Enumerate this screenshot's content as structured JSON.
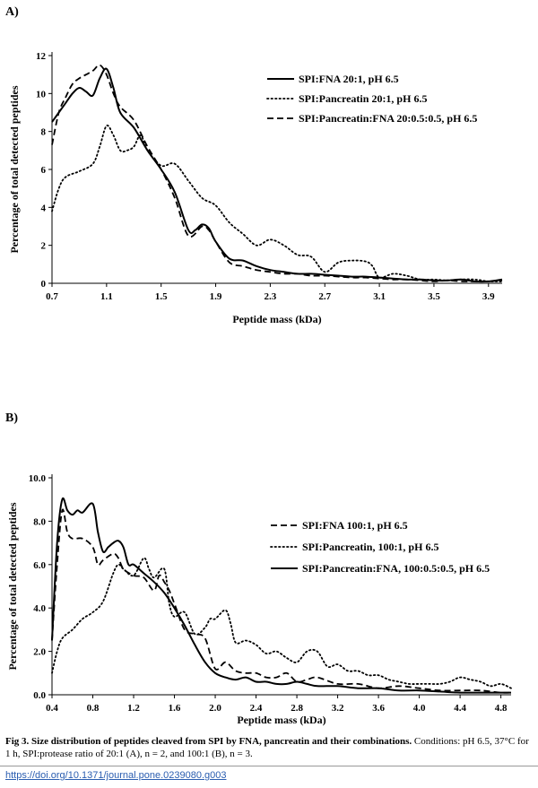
{
  "panels": {
    "a_label": "A)",
    "b_label": "B)"
  },
  "chart_data": [
    {
      "type": "line",
      "title": "",
      "xlabel": "Peptide mass (kDa)",
      "ylabel": "Percentage of total detected peptides",
      "xlim": [
        0.7,
        4.0
      ],
      "ylim": [
        0,
        12
      ],
      "xticks": [
        0.7,
        1.1,
        1.5,
        1.9,
        2.3,
        2.7,
        3.1,
        3.5,
        3.9
      ],
      "xtick_labels": [
        "0.7",
        "1.1",
        "1.5",
        "1.9",
        "2.3",
        "2.7",
        "3.1",
        "3.5",
        "3.9"
      ],
      "yticks": [
        0,
        2,
        4,
        6,
        8,
        10,
        12
      ],
      "ytick_labels": [
        "0",
        "2",
        "4",
        "6",
        "8",
        "10",
        "12"
      ],
      "legend_position": "top-right",
      "series": [
        {
          "name": "SPI:FNA 20:1, pH 6.5",
          "style": "solid",
          "x": [
            0.7,
            0.75,
            0.8,
            0.85,
            0.9,
            0.95,
            1.0,
            1.05,
            1.1,
            1.15,
            1.2,
            1.3,
            1.4,
            1.5,
            1.6,
            1.7,
            1.75,
            1.8,
            1.85,
            1.9,
            2.0,
            2.1,
            2.2,
            2.3,
            2.4,
            2.5,
            2.6,
            2.7,
            2.8,
            2.9,
            3.0,
            3.1,
            3.2,
            3.3,
            3.4,
            3.5,
            3.6,
            3.7,
            3.8,
            3.9,
            4.0
          ],
          "y": [
            8.5,
            9.0,
            9.5,
            10.0,
            10.3,
            10.1,
            9.9,
            10.8,
            11.3,
            10.3,
            9.0,
            8.2,
            7.0,
            6.0,
            4.8,
            2.8,
            2.8,
            3.1,
            2.9,
            2.2,
            1.3,
            1.2,
            0.9,
            0.7,
            0.6,
            0.5,
            0.5,
            0.45,
            0.4,
            0.35,
            0.35,
            0.3,
            0.25,
            0.2,
            0.2,
            0.15,
            0.15,
            0.2,
            0.1,
            0.1,
            0.2
          ]
        },
        {
          "name": "SPI:Pancreatin 20:1, pH 6.5",
          "style": "dotted",
          "x": [
            0.7,
            0.75,
            0.8,
            0.9,
            1.0,
            1.05,
            1.1,
            1.15,
            1.2,
            1.25,
            1.3,
            1.35,
            1.4,
            1.5,
            1.6,
            1.7,
            1.8,
            1.9,
            2.0,
            2.1,
            2.2,
            2.3,
            2.4,
            2.5,
            2.6,
            2.7,
            2.8,
            2.9,
            3.0,
            3.05,
            3.1,
            3.2,
            3.3,
            3.4,
            3.5,
            3.6,
            3.7,
            3.8,
            3.9,
            4.0
          ],
          "y": [
            3.8,
            5.0,
            5.6,
            5.9,
            6.3,
            7.2,
            8.3,
            7.8,
            7.0,
            7.0,
            7.2,
            7.8,
            7.0,
            6.2,
            6.3,
            5.4,
            4.5,
            4.1,
            3.2,
            2.6,
            2.0,
            2.3,
            2.0,
            1.5,
            1.4,
            0.6,
            1.1,
            1.2,
            1.15,
            0.9,
            0.3,
            0.5,
            0.4,
            0.2,
            0.2,
            0.15,
            0.2,
            0.2,
            0.1,
            0.1
          ]
        },
        {
          "name": "SPI:Pancreatin:FNA 20:0.5:0.5, pH 6.5",
          "style": "dashed",
          "x": [
            0.7,
            0.75,
            0.8,
            0.85,
            0.9,
            0.95,
            1.0,
            1.05,
            1.1,
            1.15,
            1.2,
            1.3,
            1.4,
            1.5,
            1.6,
            1.7,
            1.8,
            1.85,
            1.9,
            2.0,
            2.1,
            2.2,
            2.3,
            2.4,
            2.5,
            2.6,
            2.7,
            2.8,
            2.9,
            3.0,
            3.1,
            3.2,
            3.3,
            3.4,
            3.5,
            3.6,
            3.7,
            3.8,
            3.9,
            4.0
          ],
          "y": [
            7.3,
            9.0,
            9.8,
            10.5,
            10.8,
            11.0,
            11.2,
            11.5,
            11.0,
            10.0,
            9.3,
            8.6,
            7.2,
            6.0,
            4.5,
            2.5,
            3.0,
            2.8,
            2.2,
            1.1,
            0.9,
            0.7,
            0.6,
            0.5,
            0.5,
            0.4,
            0.4,
            0.35,
            0.3,
            0.3,
            0.25,
            0.2,
            0.2,
            0.15,
            0.1,
            0.15,
            0.1,
            0.1,
            0.1,
            0.15
          ]
        }
      ]
    },
    {
      "type": "line",
      "title": "",
      "xlabel": "Peptide mass (kDa)",
      "ylabel": "Percentage of total detected peptides",
      "xlim": [
        0.4,
        4.9
      ],
      "ylim": [
        0,
        10
      ],
      "xticks": [
        0.4,
        0.8,
        1.2,
        1.6,
        2.0,
        2.4,
        2.8,
        3.2,
        3.6,
        4.0,
        4.4,
        4.8
      ],
      "xtick_labels": [
        "0.4",
        "0.8",
        "1.2",
        "1.6",
        "2.0",
        "2.4",
        "2.8",
        "3.2",
        "3.6",
        "4.0",
        "4.4",
        "4.8"
      ],
      "yticks": [
        0,
        2,
        4,
        6,
        8,
        10
      ],
      "ytick_labels": [
        "0.0",
        "2.0",
        "4.0",
        "6.0",
        "8.0",
        "10.0"
      ],
      "legend_position": "right",
      "series": [
        {
          "name": "SPI:FNA 100:1, pH 6.5",
          "style": "dashed",
          "x": [
            0.4,
            0.45,
            0.5,
            0.55,
            0.6,
            0.7,
            0.8,
            0.85,
            0.9,
            1.0,
            1.05,
            1.1,
            1.2,
            1.3,
            1.4,
            1.45,
            1.5,
            1.55,
            1.6,
            1.7,
            1.8,
            1.9,
            2.0,
            2.1,
            2.2,
            2.3,
            2.4,
            2.5,
            2.6,
            2.7,
            2.8,
            2.9,
            3.0,
            3.2,
            3.4,
            3.6,
            3.8,
            4.0,
            4.2,
            4.4,
            4.6,
            4.8,
            4.9
          ],
          "y": [
            2.5,
            6.0,
            8.5,
            7.5,
            7.2,
            7.2,
            6.8,
            6.0,
            6.2,
            6.5,
            6.3,
            5.8,
            5.5,
            5.4,
            4.8,
            5.5,
            5.2,
            4.8,
            4.2,
            3.0,
            2.8,
            2.6,
            1.2,
            1.5,
            1.1,
            1.0,
            1.0,
            0.8,
            0.8,
            1.0,
            0.6,
            0.7,
            0.8,
            0.5,
            0.5,
            0.3,
            0.4,
            0.3,
            0.2,
            0.2,
            0.2,
            0.1,
            0.1
          ]
        },
        {
          "name": "SPI:Pancreatin, 100:1, pH 6.5",
          "style": "dotted",
          "x": [
            0.4,
            0.45,
            0.5,
            0.6,
            0.7,
            0.8,
            0.9,
            1.0,
            1.05,
            1.1,
            1.2,
            1.3,
            1.35,
            1.4,
            1.5,
            1.55,
            1.6,
            1.7,
            1.8,
            1.9,
            1.95,
            2.0,
            2.1,
            2.15,
            2.2,
            2.3,
            2.4,
            2.5,
            2.6,
            2.7,
            2.8,
            2.9,
            3.0,
            3.1,
            3.2,
            3.3,
            3.4,
            3.5,
            3.6,
            3.7,
            3.8,
            3.9,
            4.0,
            4.1,
            4.2,
            4.3,
            4.4,
            4.5,
            4.6,
            4.7,
            4.8,
            4.9
          ],
          "y": [
            1.0,
            2.0,
            2.6,
            3.0,
            3.5,
            3.8,
            4.3,
            5.6,
            6.0,
            5.8,
            5.5,
            6.3,
            5.8,
            5.4,
            5.8,
            4.2,
            3.6,
            3.8,
            2.8,
            3.1,
            3.5,
            3.5,
            3.9,
            3.3,
            2.4,
            2.5,
            2.3,
            1.9,
            2.0,
            1.7,
            1.5,
            2.0,
            2.0,
            1.3,
            1.4,
            1.1,
            1.1,
            0.9,
            0.9,
            0.7,
            0.6,
            0.5,
            0.5,
            0.5,
            0.5,
            0.6,
            0.8,
            0.7,
            0.6,
            0.4,
            0.5,
            0.3
          ]
        },
        {
          "name": "SPI:Pancreatin:FNA, 100:0.5:0.5, pH 6.5",
          "style": "solid",
          "x": [
            0.4,
            0.45,
            0.5,
            0.55,
            0.6,
            0.65,
            0.7,
            0.8,
            0.85,
            0.9,
            0.95,
            1.0,
            1.05,
            1.1,
            1.15,
            1.2,
            1.3,
            1.4,
            1.5,
            1.6,
            1.7,
            1.8,
            1.9,
            2.0,
            2.1,
            2.2,
            2.3,
            2.4,
            2.5,
            2.6,
            2.7,
            2.8,
            2.9,
            3.0,
            3.2,
            3.4,
            3.6,
            3.8,
            4.0,
            4.2,
            4.4,
            4.6,
            4.8,
            4.9
          ],
          "y": [
            2.5,
            7.0,
            9.0,
            8.5,
            8.3,
            8.5,
            8.4,
            8.8,
            7.5,
            6.6,
            6.8,
            7.0,
            7.1,
            6.8,
            6.0,
            6.0,
            5.6,
            5.2,
            4.7,
            4.0,
            3.2,
            2.3,
            1.5,
            1.0,
            0.8,
            0.7,
            0.8,
            0.6,
            0.6,
            0.5,
            0.5,
            0.6,
            0.5,
            0.4,
            0.4,
            0.3,
            0.3,
            0.2,
            0.2,
            0.15,
            0.1,
            0.1,
            0.1,
            0.1
          ]
        }
      ]
    }
  ],
  "caption": {
    "bold": "Fig 3. Size distribution of peptides cleaved from SPI by FNA, pancreatin and their combinations.",
    "text": " Conditions: pH 6.5, 37°C for 1 h, SPI:protease ratio of 20:1 (A), n = 2, and 100:1 (B), n = 3."
  },
  "doi": "https://doi.org/10.1371/journal.pone.0239080.g003"
}
